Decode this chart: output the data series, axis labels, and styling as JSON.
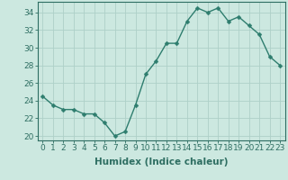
{
  "x": [
    0,
    1,
    2,
    3,
    4,
    5,
    6,
    7,
    8,
    9,
    10,
    11,
    12,
    13,
    14,
    15,
    16,
    17,
    18,
    19,
    20,
    21,
    22,
    23
  ],
  "y": [
    24.5,
    23.5,
    23.0,
    23.0,
    22.5,
    22.5,
    21.5,
    20.0,
    20.5,
    23.5,
    27.0,
    28.5,
    30.5,
    30.5,
    33.0,
    34.5,
    34.0,
    34.5,
    33.0,
    33.5,
    32.5,
    31.5,
    29.0,
    28.0
  ],
  "line_color": "#2e7d6e",
  "marker": "D",
  "marker_size": 2.5,
  "bg_color": "#cce8e0",
  "grid_color": "#aed0c8",
  "xlabel": "Humidex (Indice chaleur)",
  "ylabel": "",
  "xlim": [
    -0.5,
    23.5
  ],
  "ylim": [
    19.5,
    35.2
  ],
  "yticks": [
    20,
    22,
    24,
    26,
    28,
    30,
    32,
    34
  ],
  "xticks": [
    0,
    1,
    2,
    3,
    4,
    5,
    6,
    7,
    8,
    9,
    10,
    11,
    12,
    13,
    14,
    15,
    16,
    17,
    18,
    19,
    20,
    21,
    22,
    23
  ],
  "xtick_labels": [
    "0",
    "1",
    "2",
    "3",
    "4",
    "5",
    "6",
    "7",
    "8",
    "9",
    "10",
    "11",
    "12",
    "13",
    "14",
    "15",
    "16",
    "17",
    "18",
    "19",
    "20",
    "21",
    "22",
    "23"
  ],
  "tick_color": "#2e6e62",
  "axis_color": "#2e6e62",
  "label_fontsize": 7.5,
  "tick_fontsize": 6.5
}
